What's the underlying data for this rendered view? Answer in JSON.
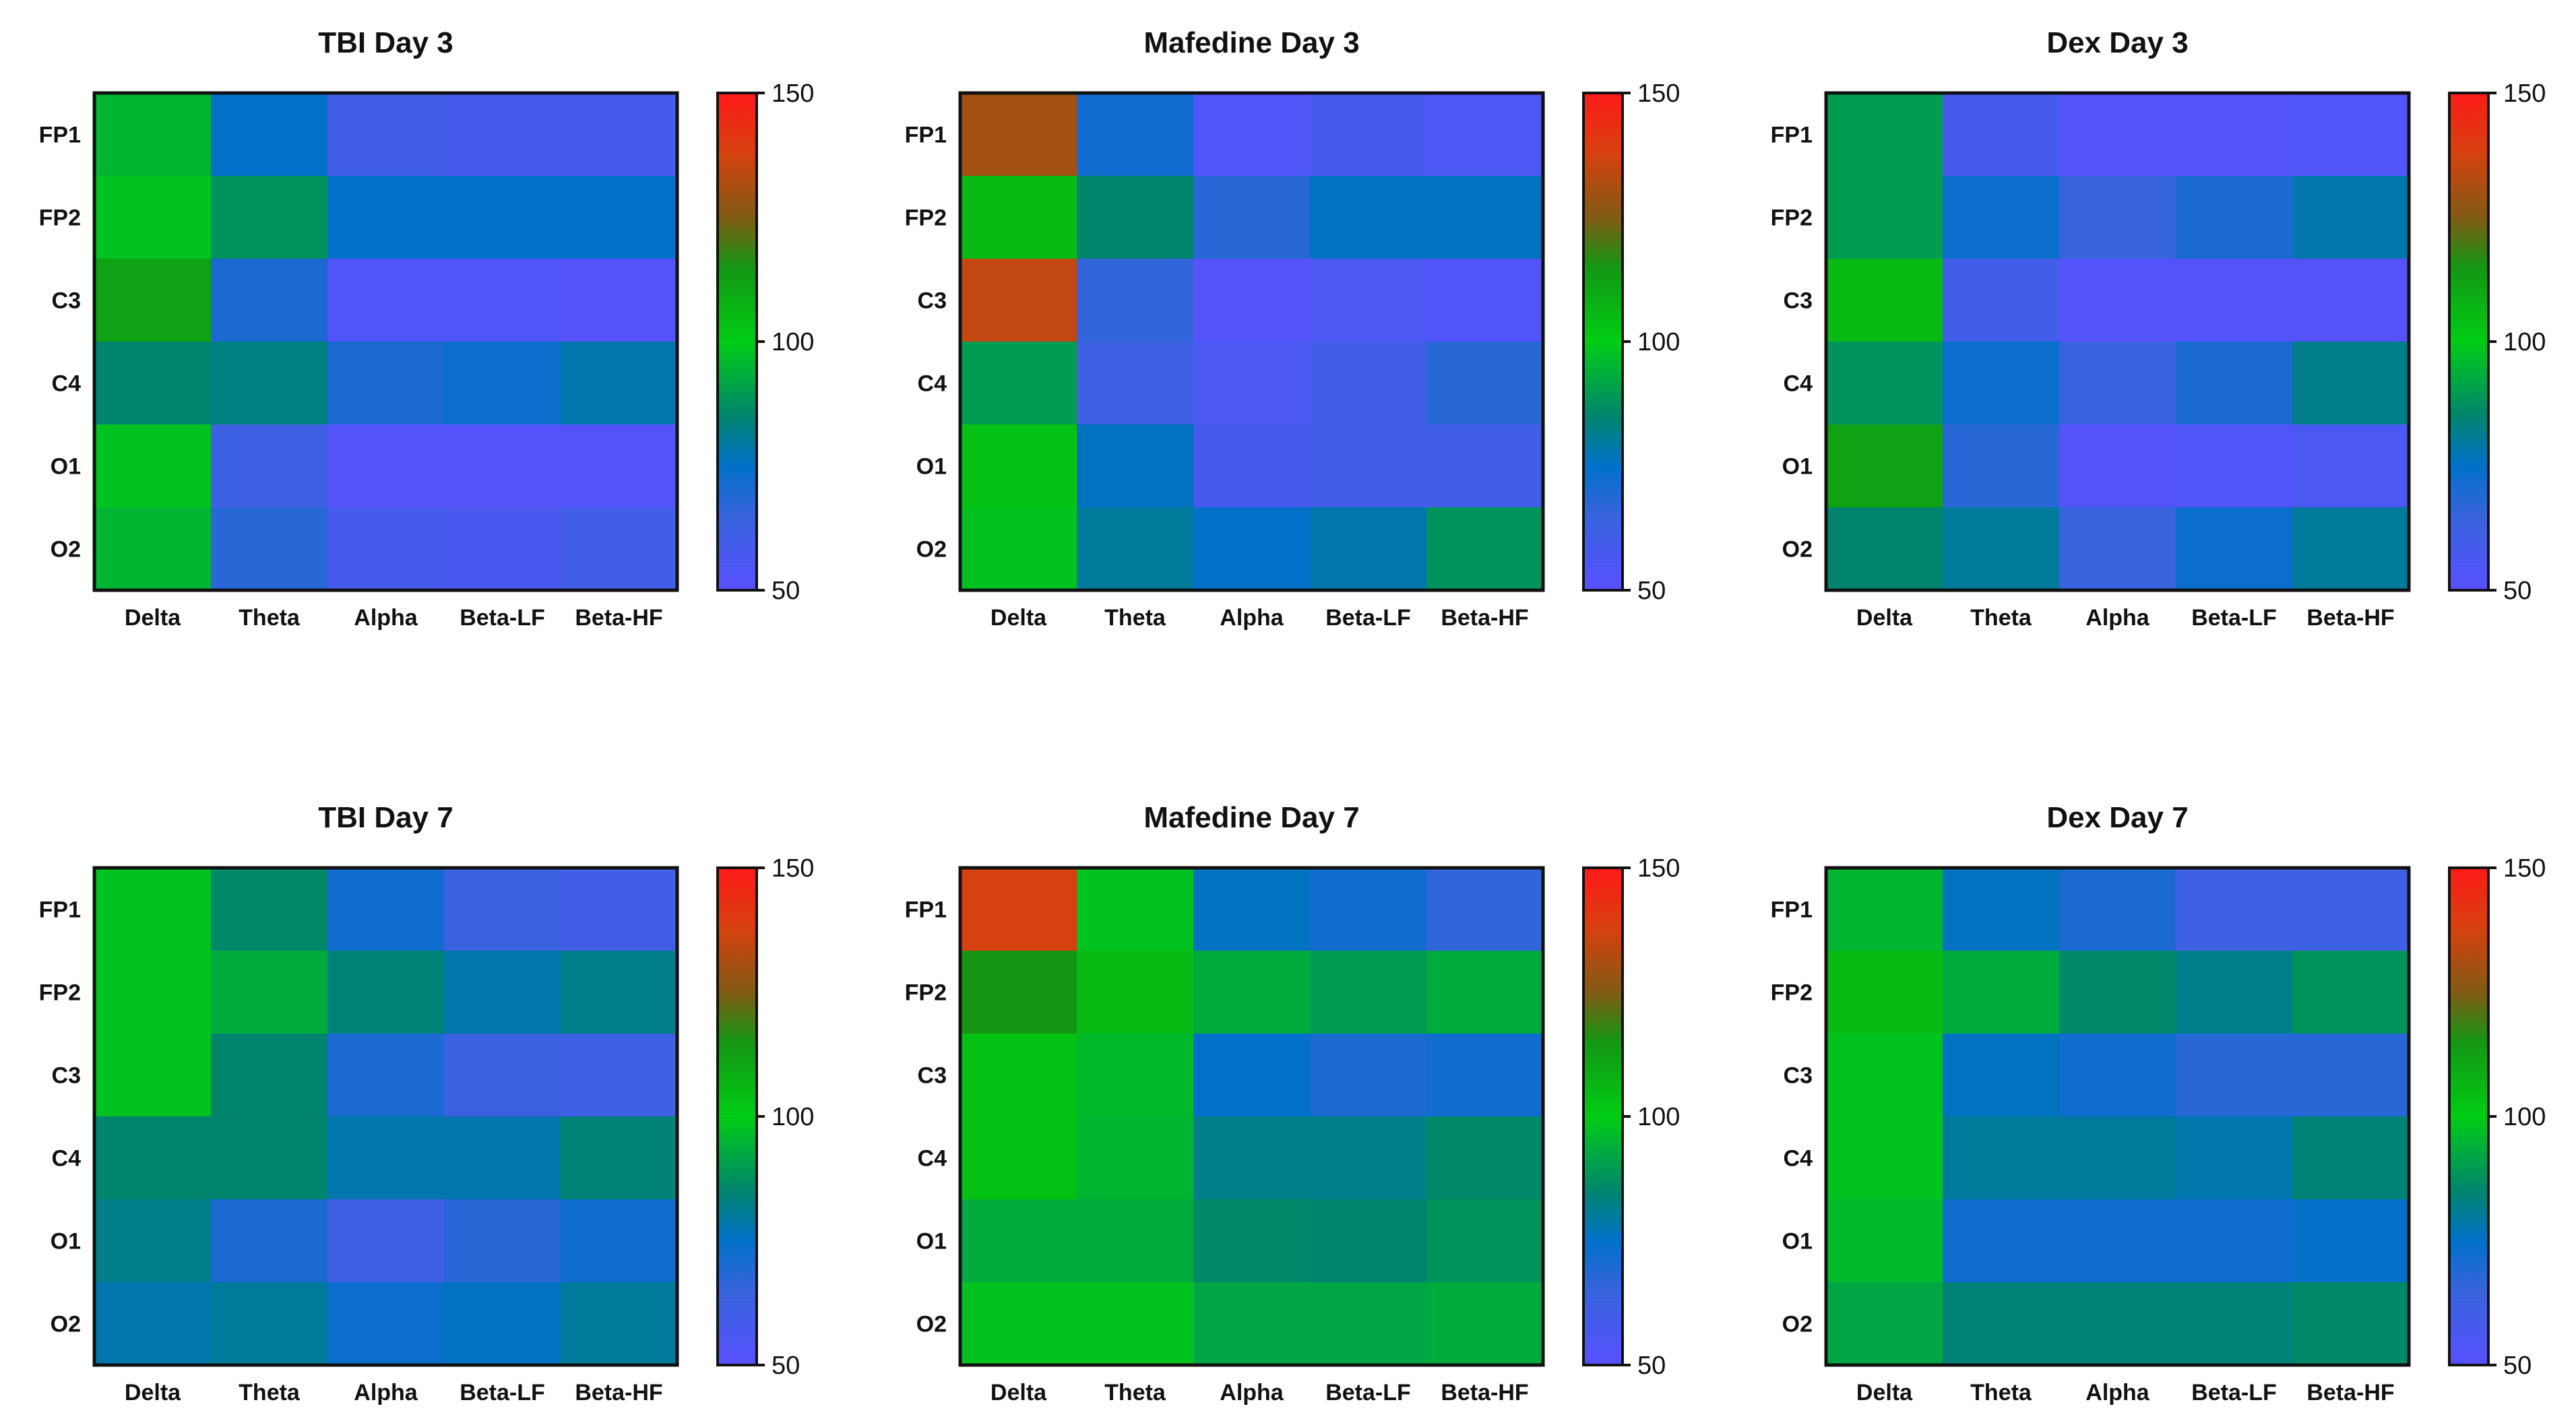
{
  "chart_data": [
    {
      "type": "heatmap",
      "title": "TBI Day 3",
      "x_categories": [
        "Delta",
        "Theta",
        "Alpha",
        "Beta-LF",
        "Beta-HF"
      ],
      "y_categories": [
        "FP1",
        "FP2",
        "C3",
        "C4",
        "O1",
        "O2"
      ],
      "values": [
        [
          95,
          75,
          60,
          58,
          58
        ],
        [
          98,
          88,
          75,
          75,
          75
        ],
        [
          112,
          70,
          54,
          53,
          52
        ],
        [
          85,
          83,
          70,
          73,
          78
        ],
        [
          98,
          62,
          52,
          52,
          52
        ],
        [
          95,
          68,
          58,
          57,
          60
        ]
      ],
      "colorbar": {
        "min": 50,
        "max": 150,
        "ticks": [
          50,
          100,
          150
        ]
      }
    },
    {
      "type": "heatmap",
      "title": "Mafedine Day 3",
      "x_categories": [
        "Delta",
        "Theta",
        "Alpha",
        "Beta-LF",
        "Beta-HF"
      ],
      "y_categories": [
        "FP1",
        "FP2",
        "C3",
        "C4",
        "O1",
        "O2"
      ],
      "values": [
        [
          130,
          72,
          54,
          58,
          55
        ],
        [
          105,
          85,
          68,
          76,
          76
        ],
        [
          135,
          66,
          52,
          56,
          53
        ],
        [
          90,
          62,
          56,
          60,
          68
        ],
        [
          103,
          76,
          58,
          60,
          60
        ],
        [
          98,
          80,
          75,
          78,
          88
        ]
      ],
      "colorbar": {
        "min": 50,
        "max": 150,
        "ticks": [
          50,
          100,
          150
        ]
      }
    },
    {
      "type": "heatmap",
      "title": "Dex Day 3",
      "x_categories": [
        "Delta",
        "Theta",
        "Alpha",
        "Beta-LF",
        "Beta-HF"
      ],
      "y_categories": [
        "FP1",
        "FP2",
        "C3",
        "C4",
        "O1",
        "O2"
      ],
      "values": [
        [
          90,
          58,
          52,
          52,
          54
        ],
        [
          90,
          73,
          65,
          70,
          78
        ],
        [
          105,
          60,
          52,
          52,
          52
        ],
        [
          88,
          73,
          64,
          70,
          82
        ],
        [
          112,
          68,
          52,
          54,
          56
        ],
        [
          85,
          80,
          65,
          73,
          80
        ]
      ],
      "colorbar": {
        "min": 50,
        "max": 150,
        "ticks": [
          50,
          100,
          150
        ]
      }
    },
    {
      "type": "heatmap",
      "title": "TBI Day 7",
      "x_categories": [
        "Delta",
        "Theta",
        "Alpha",
        "Beta-LF",
        "Beta-HF"
      ],
      "y_categories": [
        "FP1",
        "FP2",
        "C3",
        "C4",
        "O1",
        "O2"
      ],
      "values": [
        [
          98,
          86,
          72,
          63,
          60
        ],
        [
          98,
          93,
          84,
          78,
          82
        ],
        [
          98,
          85,
          70,
          63,
          62
        ],
        [
          85,
          85,
          78,
          78,
          84
        ],
        [
          82,
          70,
          62,
          68,
          72
        ],
        [
          78,
          80,
          73,
          76,
          80
        ]
      ],
      "colorbar": {
        "min": 50,
        "max": 150,
        "ticks": [
          50,
          100,
          150
        ]
      }
    },
    {
      "type": "heatmap",
      "title": "Mafedine Day 7",
      "x_categories": [
        "Delta",
        "Theta",
        "Alpha",
        "Beta-LF",
        "Beta-HF"
      ],
      "y_categories": [
        "FP1",
        "FP2",
        "C3",
        "C4",
        "O1",
        "O2"
      ],
      "values": [
        [
          138,
          98,
          76,
          72,
          66
        ],
        [
          115,
          105,
          93,
          90,
          93
        ],
        [
          103,
          96,
          75,
          70,
          72
        ],
        [
          103,
          95,
          82,
          82,
          86
        ],
        [
          93,
          93,
          86,
          85,
          88
        ],
        [
          98,
          98,
          92,
          92,
          93
        ]
      ],
      "colorbar": {
        "min": 50,
        "max": 150,
        "ticks": [
          50,
          100,
          150
        ]
      }
    },
    {
      "type": "heatmap",
      "title": "Dex Day 7",
      "x_categories": [
        "Delta",
        "Theta",
        "Alpha",
        "Beta-LF",
        "Beta-HF"
      ],
      "y_categories": [
        "FP1",
        "FP2",
        "C3",
        "C4",
        "O1",
        "O2"
      ],
      "values": [
        [
          95,
          76,
          70,
          62,
          62
        ],
        [
          105,
          93,
          86,
          82,
          88
        ],
        [
          98,
          76,
          72,
          68,
          68
        ],
        [
          98,
          80,
          80,
          78,
          84
        ],
        [
          96,
          72,
          72,
          72,
          74
        ],
        [
          92,
          84,
          84,
          84,
          86
        ]
      ],
      "colorbar": {
        "min": 50,
        "max": 150,
        "ticks": [
          50,
          100,
          150
        ]
      }
    }
  ]
}
